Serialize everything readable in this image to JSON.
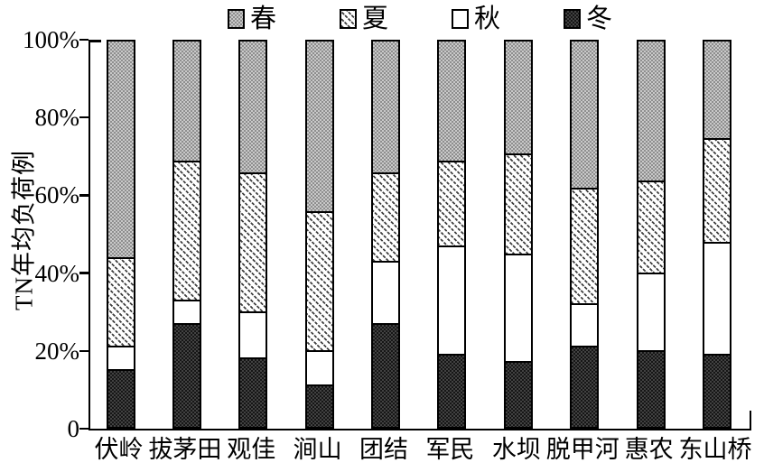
{
  "figure": {
    "y_axis_title": "TN年均负荷例"
  },
  "colors": {
    "spring_light": "#c9c9c9",
    "spring_dark": "#8e8e8e",
    "summer_hatch": "#3f3f3f",
    "autumn_fill": "#ffffff",
    "winter_fill": "#161616",
    "winter_check": "#424242",
    "axis": "#000000"
  },
  "chart_data": {
    "type": "bar",
    "subtype": "stacked-100-percent",
    "title": "",
    "xlabel": "",
    "ylabel": "TN年均负荷例",
    "ylim": [
      0,
      100
    ],
    "grid": false,
    "legend_position": "top",
    "ytick_labels": [
      "100%",
      "80%",
      "60%",
      "40%",
      "20%",
      "0"
    ],
    "ytick_values": [
      100,
      80,
      60,
      40,
      20,
      0
    ],
    "categories": [
      "伏岭",
      "拔茅田",
      "观佳",
      "涧山",
      "团结",
      "军民",
      "水坝",
      "脱甲河",
      "惠农",
      "东山桥"
    ],
    "series": [
      {
        "name": "春",
        "key": "spring",
        "values": [
          56,
          31,
          34,
          44,
          34,
          31,
          29,
          38,
          36,
          25
        ]
      },
      {
        "name": "夏",
        "key": "summer",
        "values": [
          23,
          36,
          36,
          36,
          23,
          22,
          26,
          30,
          24,
          27
        ]
      },
      {
        "name": "秋",
        "key": "autumn",
        "values": [
          6,
          6,
          12,
          9,
          16,
          28,
          28,
          11,
          20,
          29
        ]
      },
      {
        "name": "冬",
        "key": "winter",
        "values": [
          15,
          27,
          18,
          11,
          27,
          19,
          17,
          21,
          20,
          19
        ]
      }
    ]
  }
}
